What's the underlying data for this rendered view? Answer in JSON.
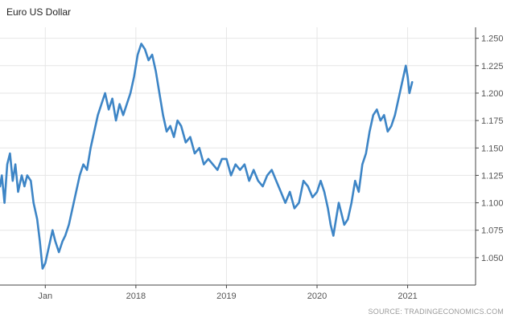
{
  "chart_data": {
    "type": "line",
    "title": "Euro US Dollar",
    "source": "SOURCE: TRADINGECONOMICS.COM",
    "xlabel": "",
    "ylabel": "",
    "ylim": [
      1.025,
      1.26
    ],
    "xlim": [
      2016.0,
      2021.25
    ],
    "x_ticks": [
      {
        "value": 2016.5,
        "label": "Jan"
      },
      {
        "value": 2017.5,
        "label": "2018"
      },
      {
        "value": 2018.5,
        "label": "2019"
      },
      {
        "value": 2019.5,
        "label": "2020"
      },
      {
        "value": 2020.5,
        "label": "2021"
      }
    ],
    "y_ticks": [
      1.05,
      1.075,
      1.1,
      1.125,
      1.15,
      1.175,
      1.2,
      1.225,
      1.25
    ],
    "y_tick_labels": [
      "1.050",
      "1.075",
      "1.100",
      "1.125",
      "1.150",
      "1.175",
      "1.200",
      "1.225",
      "1.250"
    ],
    "grid": true,
    "axis_side": "right",
    "series": [
      {
        "color": "#3d85c6",
        "x": [
          2016.0,
          2016.02,
          2016.05,
          2016.08,
          2016.11,
          2016.14,
          2016.17,
          2016.2,
          2016.24,
          2016.27,
          2016.3,
          2016.34,
          2016.37,
          2016.41,
          2016.44,
          2016.47,
          2016.5,
          2016.54,
          2016.58,
          2016.61,
          2016.65,
          2016.69,
          2016.72,
          2016.76,
          2016.8,
          2016.84,
          2016.88,
          2016.92,
          2016.96,
          2017.0,
          2017.04,
          2017.08,
          2017.12,
          2017.16,
          2017.2,
          2017.24,
          2017.28,
          2017.32,
          2017.36,
          2017.4,
          2017.44,
          2017.48,
          2017.52,
          2017.56,
          2017.6,
          2017.64,
          2017.68,
          2017.72,
          2017.76,
          2017.8,
          2017.84,
          2017.88,
          2017.92,
          2017.96,
          2018.0,
          2018.05,
          2018.1,
          2018.15,
          2018.2,
          2018.25,
          2018.3,
          2018.35,
          2018.4,
          2018.45,
          2018.5,
          2018.55,
          2018.6,
          2018.65,
          2018.7,
          2018.75,
          2018.8,
          2018.85,
          2018.9,
          2018.95,
          2019.0,
          2019.05,
          2019.1,
          2019.15,
          2019.2,
          2019.25,
          2019.3,
          2019.35,
          2019.4,
          2019.45,
          2019.5,
          2019.54,
          2019.58,
          2019.62,
          2019.65,
          2019.68,
          2019.71,
          2019.74,
          2019.77,
          2019.8,
          2019.84,
          2019.88,
          2019.92,
          2019.96,
          2020.0,
          2020.04,
          2020.08,
          2020.12,
          2020.16,
          2020.2,
          2020.24,
          2020.28,
          2020.32,
          2020.36,
          2020.4,
          2020.44,
          2020.48,
          2020.5,
          2020.52,
          2020.55
        ],
        "values": [
          1.115,
          1.125,
          1.1,
          1.135,
          1.145,
          1.12,
          1.135,
          1.11,
          1.125,
          1.115,
          1.125,
          1.12,
          1.1,
          1.085,
          1.065,
          1.04,
          1.045,
          1.06,
          1.075,
          1.065,
          1.055,
          1.065,
          1.07,
          1.08,
          1.095,
          1.11,
          1.125,
          1.135,
          1.13,
          1.15,
          1.165,
          1.18,
          1.19,
          1.2,
          1.185,
          1.195,
          1.175,
          1.19,
          1.18,
          1.19,
          1.2,
          1.215,
          1.235,
          1.245,
          1.24,
          1.23,
          1.235,
          1.22,
          1.2,
          1.18,
          1.165,
          1.17,
          1.16,
          1.175,
          1.17,
          1.155,
          1.16,
          1.145,
          1.15,
          1.135,
          1.14,
          1.135,
          1.13,
          1.14,
          1.14,
          1.125,
          1.135,
          1.13,
          1.135,
          1.12,
          1.13,
          1.12,
          1.115,
          1.125,
          1.13,
          1.12,
          1.11,
          1.1,
          1.11,
          1.095,
          1.1,
          1.12,
          1.115,
          1.105,
          1.11,
          1.12,
          1.11,
          1.095,
          1.08,
          1.07,
          1.085,
          1.1,
          1.09,
          1.08,
          1.085,
          1.1,
          1.12,
          1.11,
          1.135,
          1.145,
          1.165,
          1.18,
          1.185,
          1.175,
          1.18,
          1.165,
          1.17,
          1.18,
          1.195,
          1.21,
          1.225,
          1.215,
          1.2,
          1.21
        ]
      }
    ]
  }
}
